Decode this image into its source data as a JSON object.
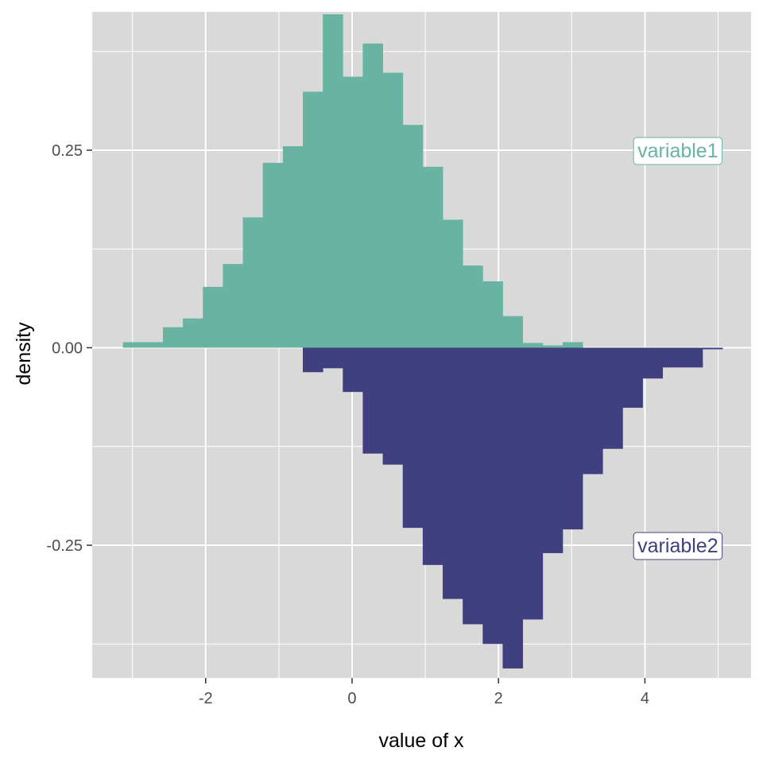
{
  "chart_data": {
    "type": "bar",
    "subtype": "mirrored-histogram",
    "title": "",
    "xlabel": "value of x",
    "ylabel": "density",
    "xlim": [
      -3.55,
      5.45
    ],
    "ylim": [
      -0.418,
      0.425
    ],
    "x_ticks": [
      -2,
      0,
      2,
      4
    ],
    "x_tick_labels": [
      "-2",
      "0",
      "2",
      "4"
    ],
    "y_ticks": [
      0.25,
      0,
      -0.25
    ],
    "y_tick_labels": [
      "0.25",
      "0.00",
      "-0.25"
    ],
    "grid": true,
    "bin_width": 0.273,
    "series": [
      {
        "name": "variable1",
        "color": "#69b3a2",
        "bins_left": [
          -3.13,
          -2.857,
          -2.584,
          -2.311,
          -2.038,
          -1.765,
          -1.492,
          -1.219,
          -0.946,
          -0.673,
          -0.4,
          -0.127,
          0.146,
          0.419,
          0.692,
          0.965,
          1.238,
          1.511,
          1.784,
          2.057,
          2.33,
          2.603,
          2.876
        ],
        "values": [
          0.007,
          0.007,
          0.026,
          0.037,
          0.077,
          0.106,
          0.165,
          0.234,
          0.255,
          0.324,
          0.422,
          0.343,
          0.385,
          0.348,
          0.282,
          0.229,
          0.162,
          0.104,
          0.084,
          0.04,
          0.006,
          0.003,
          0.007
        ]
      },
      {
        "name": "variable2",
        "color": "#404080",
        "bins_left": [
          -0.673,
          -0.4,
          -0.127,
          0.146,
          0.419,
          0.692,
          0.965,
          1.238,
          1.511,
          1.784,
          2.057,
          2.33,
          2.603,
          2.876,
          3.149,
          3.422,
          3.695,
          3.968,
          4.241,
          4.514,
          4.787
        ],
        "values": [
          -0.031,
          -0.026,
          -0.056,
          -0.134,
          -0.148,
          -0.228,
          -0.275,
          -0.318,
          -0.35,
          -0.375,
          -0.406,
          -0.344,
          -0.26,
          -0.23,
          -0.16,
          -0.128,
          -0.076,
          -0.039,
          -0.025,
          -0.025,
          -0.002
        ]
      }
    ],
    "legend": {
      "placement": "right",
      "labels": [
        {
          "text": "variable1",
          "series": 0,
          "x": 4.45,
          "y": 0.25
        },
        {
          "text": "variable2",
          "series": 1,
          "x": 4.45,
          "y": -0.25
        }
      ]
    }
  }
}
